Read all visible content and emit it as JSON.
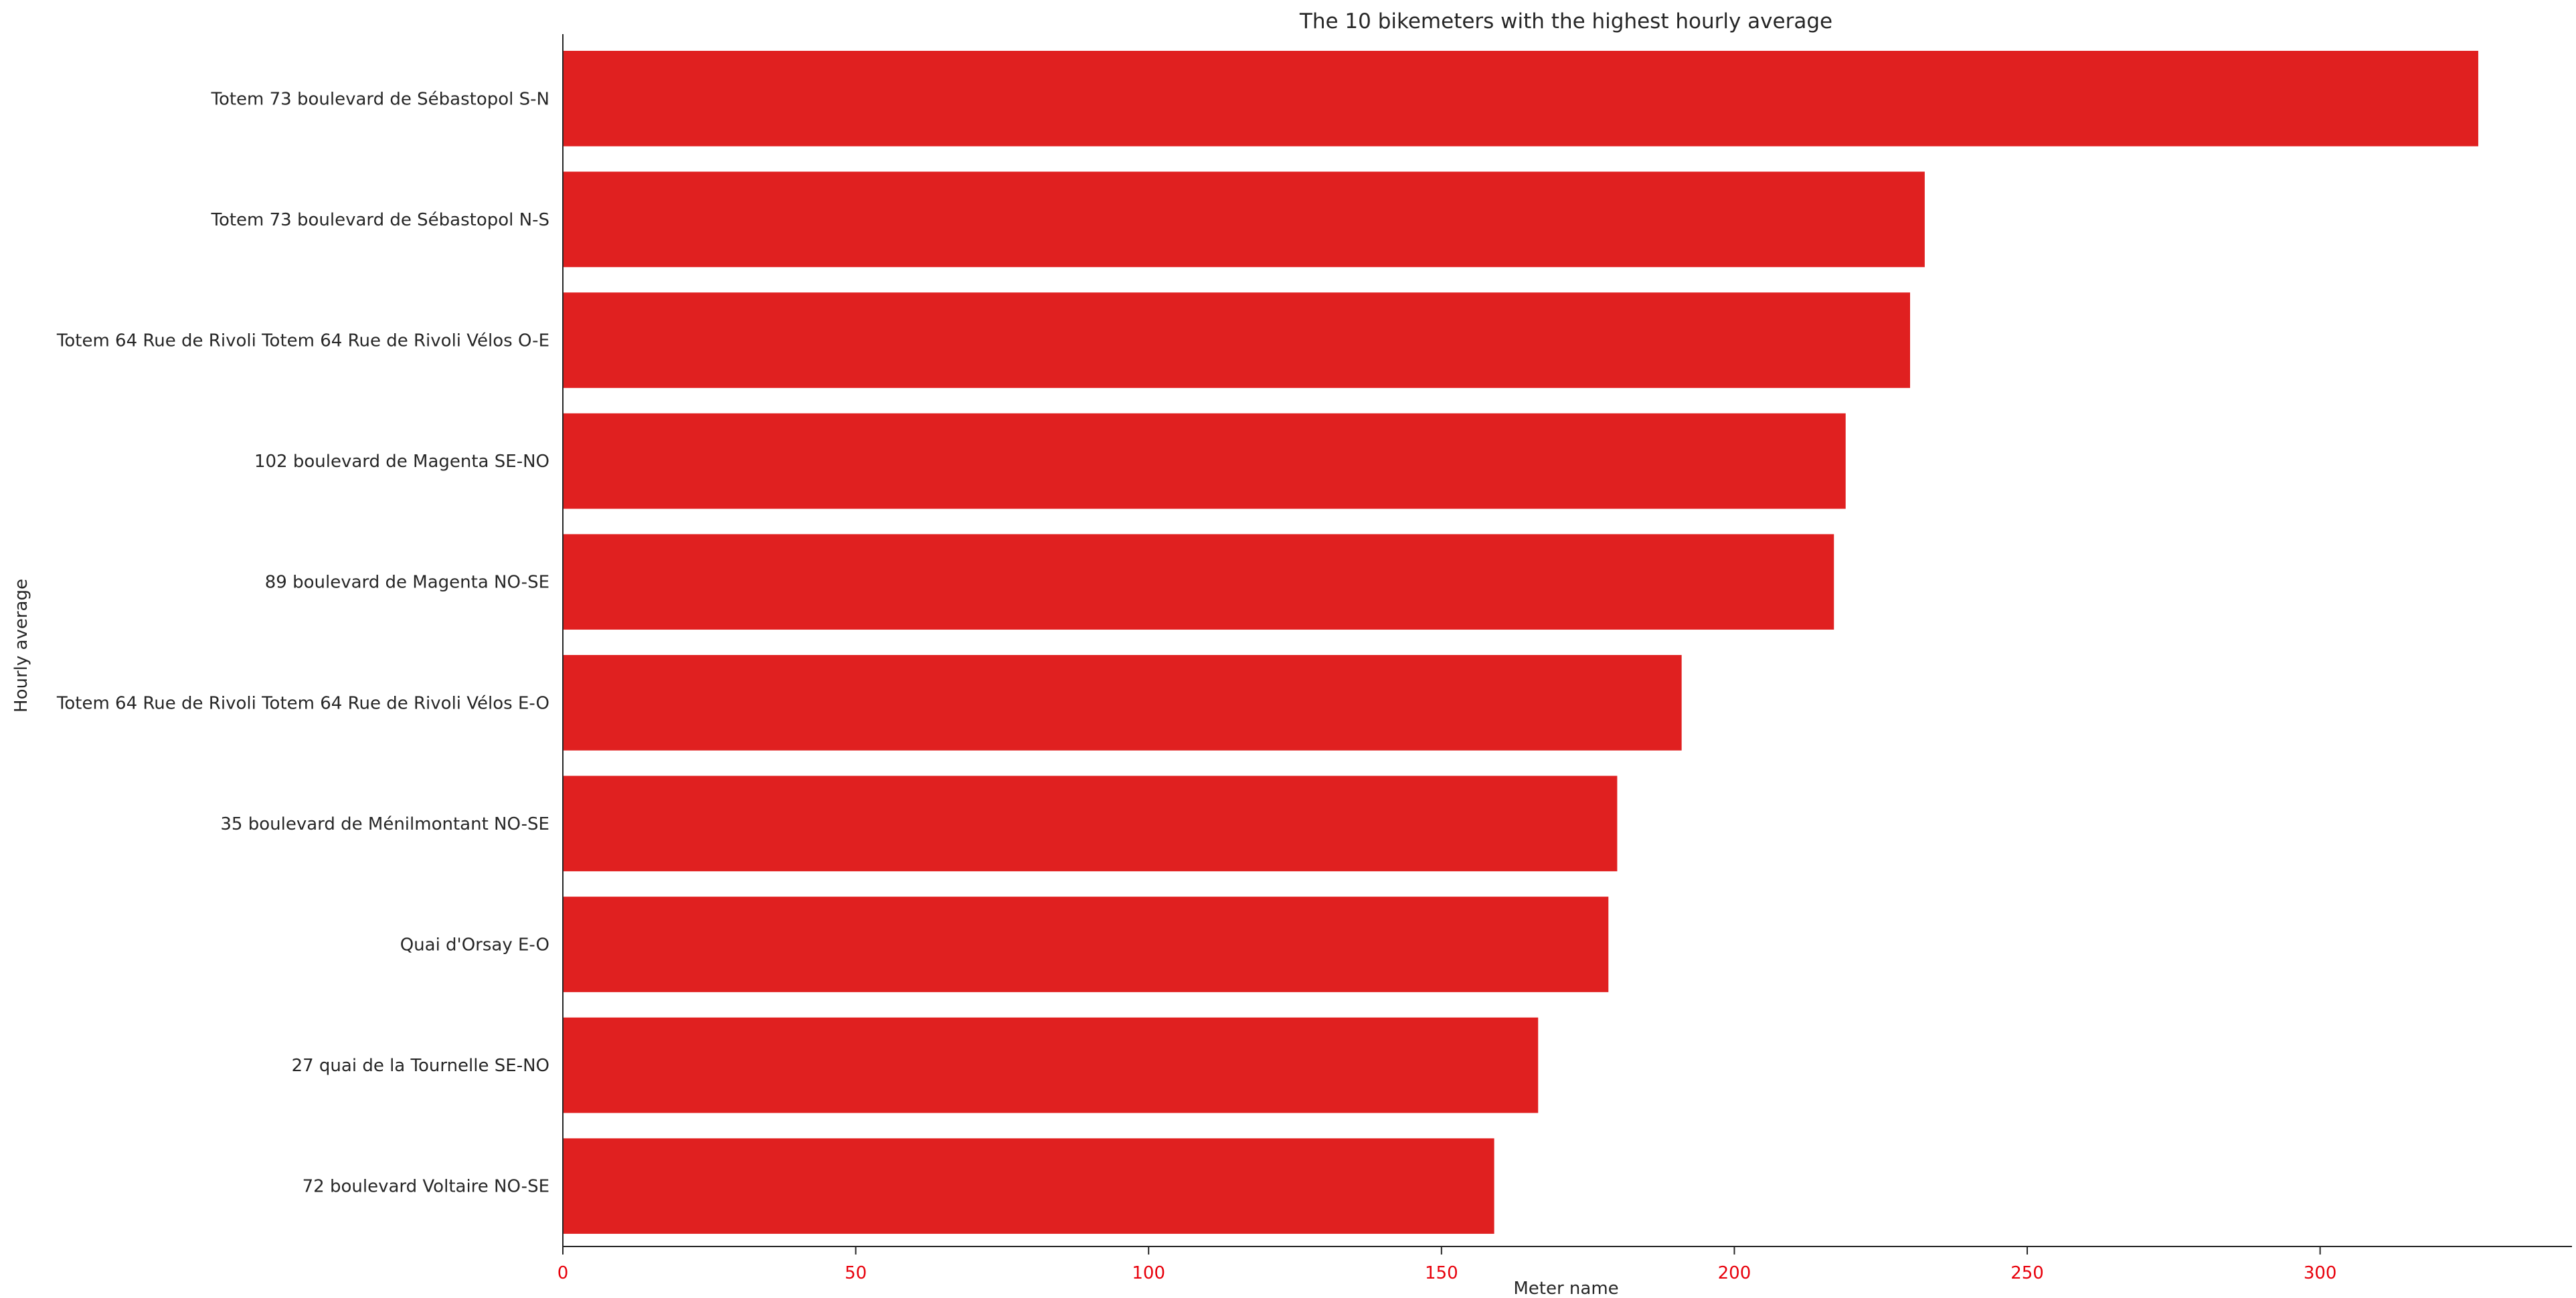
{
  "chart_data": {
    "type": "bar",
    "orientation": "horizontal",
    "title": "The 10 bikemeters with the highest hourly average",
    "xlabel": "Meter name",
    "ylabel": "Hourly average",
    "categories": [
      "Totem 73 boulevard de Sébastopol S-N",
      "Totem 73 boulevard de Sébastopol N-S",
      "Totem 64 Rue de Rivoli Totem 64 Rue de Rivoli Vélos O-E",
      "102 boulevard de Magenta SE-NO",
      "89 boulevard de Magenta NO-SE",
      "Totem 64 Rue de Rivoli Totem 64 Rue de Rivoli Vélos E-O",
      "35 boulevard de Ménilmontant NO-SE",
      "Quai d'Orsay E-O",
      "27 quai de la Tournelle SE-NO",
      "72 boulevard Voltaire NO-SE"
    ],
    "values": [
      327,
      232.5,
      230,
      219,
      217,
      191,
      180,
      178.5,
      166.5,
      159
    ],
    "xticks": [
      0,
      50,
      100,
      150,
      200,
      250,
      300
    ],
    "xlim": [
      0,
      343
    ],
    "grid": false,
    "legend": "none",
    "colors": {
      "bar": "#e02020",
      "tick_labels": "#e8000b",
      "axis": "#262626",
      "text": "#262626"
    }
  }
}
